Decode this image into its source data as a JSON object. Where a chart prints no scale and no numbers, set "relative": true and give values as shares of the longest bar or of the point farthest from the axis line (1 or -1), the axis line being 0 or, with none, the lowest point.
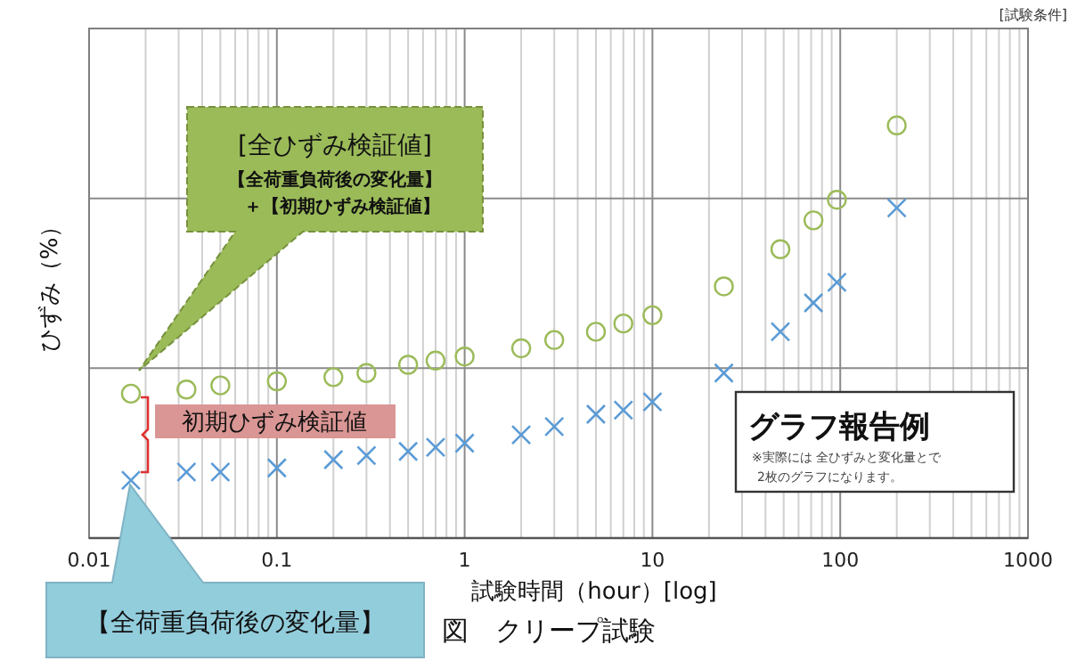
{
  "chart_data": {
    "type": "scatter",
    "title": "図　クリープ試験",
    "xlabel": "試験時間（hour）[log]",
    "ylabel": "ひずみ（%）",
    "relative": true,
    "log": "x",
    "grid": true,
    "xlim": [
      0.01,
      1000
    ],
    "xticks": [
      0.01,
      0.1,
      1,
      10,
      100,
      1000
    ],
    "x": [
      0.0167,
      0.033,
      0.05,
      0.1,
      0.2,
      0.3,
      0.5,
      0.7,
      1,
      2,
      3,
      5,
      7,
      10,
      24,
      48,
      72,
      96,
      200
    ],
    "series": [
      {
        "color": "#9bbb59",
        "marker": "circle",
        "values": [
          0.35,
          0.36,
          0.37,
          0.38,
          0.39,
          0.4,
          0.42,
          0.43,
          0.44,
          0.46,
          0.48,
          0.5,
          0.52,
          0.54,
          0.61,
          0.7,
          0.77,
          0.82,
          1
        ]
      },
      {
        "color": "#5b9bd5",
        "marker": "cross",
        "values": [
          0.14,
          0.16,
          0.16,
          0.17,
          0.19,
          0.2,
          0.21,
          0.22,
          0.23,
          0.25,
          0.27,
          0.3,
          0.31,
          0.33,
          0.4,
          0.5,
          0.57,
          0.62,
          0.8
        ]
      }
    ],
    "annotations": [
      "[試験条件]",
      "[全ひずみ検証値]",
      "【全荷重負荷後の変化量】",
      "＋【初期ひずみ検証値】",
      "初期ひずみ検証値",
      "【全荷重負荷後の変化量】",
      "グラフ報告例",
      "※実際には 全ひずみと変化量とで",
      "2枚のグラフになります。"
    ]
  }
}
